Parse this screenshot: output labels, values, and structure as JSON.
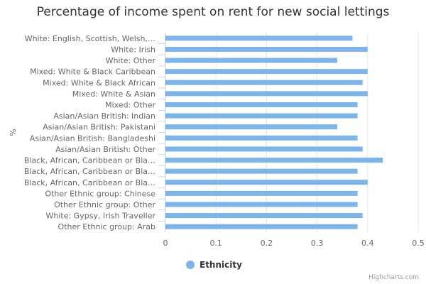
{
  "chart_data": {
    "type": "bar",
    "orientation": "horizontal",
    "title": "Percentage of income spent on rent for new social lettings",
    "ylabel": "%",
    "categories": [
      "White: English, Scottish, Welsh,…",
      "White: Irish",
      "White: Other",
      "Mixed: White & Black Caribbean",
      "Mixed: White & Black African",
      "Mixed: White & Asian",
      "Mixed: Other",
      "Asian/Asian British: Indian",
      "Asian/Asian British: Pakistani",
      "Asian/Asian British: Bangladeshi",
      "Asian/Asian British: Other",
      "Black, African, Caribbean or Bla…",
      "Black, African, Caribbean or Bla…",
      "Black, African, Caribbean or Bla…",
      "Other Ethnic group: Chinese",
      "Other Ethnic group: Other",
      "White: Gypsy, Irish Traveller",
      "Other Ethnic group: Arab"
    ],
    "series": [
      {
        "name": "Ethnicity",
        "color": "#7cb5ec",
        "values": [
          0.37,
          0.4,
          0.34,
          0.4,
          0.39,
          0.4,
          0.38,
          0.38,
          0.34,
          0.38,
          0.39,
          0.43,
          0.38,
          0.4,
          0.38,
          0.38,
          0.39,
          0.38
        ]
      }
    ],
    "xlim": [
      0,
      0.5
    ],
    "ticks": [
      "0",
      "0.1",
      "0.2",
      "0.3",
      "0.4",
      "0.5"
    ],
    "grid": true,
    "legend_position": "bottom-center"
  },
  "credits": "Highcharts.com"
}
